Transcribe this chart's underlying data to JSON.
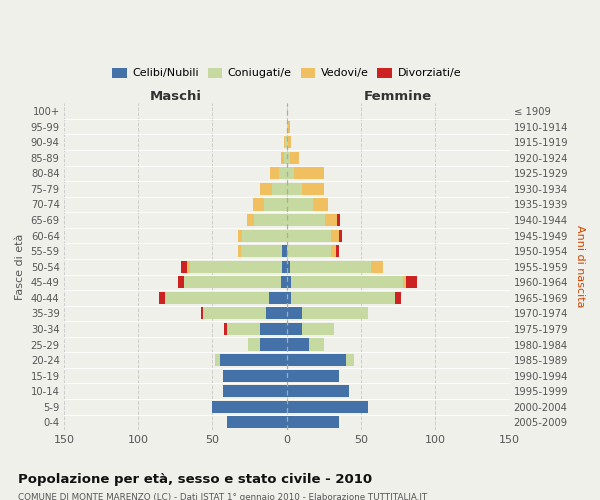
{
  "age_groups": [
    "0-4",
    "5-9",
    "10-14",
    "15-19",
    "20-24",
    "25-29",
    "30-34",
    "35-39",
    "40-44",
    "45-49",
    "50-54",
    "55-59",
    "60-64",
    "65-69",
    "70-74",
    "75-79",
    "80-84",
    "85-89",
    "90-94",
    "95-99",
    "100+"
  ],
  "birth_years": [
    "2005-2009",
    "2000-2004",
    "1995-1999",
    "1990-1994",
    "1985-1989",
    "1980-1984",
    "1975-1979",
    "1970-1974",
    "1965-1969",
    "1960-1964",
    "1955-1959",
    "1950-1954",
    "1945-1949",
    "1940-1944",
    "1935-1939",
    "1930-1934",
    "1925-1929",
    "1920-1924",
    "1915-1919",
    "1910-1914",
    "≤ 1909"
  ],
  "male_celibinubili": [
    40,
    50,
    43,
    43,
    45,
    18,
    18,
    14,
    12,
    4,
    3,
    3,
    0,
    0,
    0,
    0,
    0,
    0,
    0,
    0,
    0
  ],
  "male_coniugati": [
    0,
    0,
    0,
    0,
    3,
    8,
    22,
    42,
    70,
    65,
    62,
    28,
    30,
    22,
    15,
    10,
    5,
    2,
    1,
    0,
    0
  ],
  "male_vedovi": [
    0,
    0,
    0,
    0,
    0,
    0,
    0,
    0,
    0,
    0,
    2,
    2,
    3,
    5,
    8,
    8,
    6,
    2,
    1,
    0,
    0
  ],
  "male_divorziati": [
    0,
    0,
    0,
    0,
    0,
    0,
    2,
    2,
    4,
    4,
    4,
    0,
    0,
    0,
    0,
    0,
    0,
    0,
    0,
    0,
    0
  ],
  "female_celibinubili": [
    35,
    55,
    42,
    35,
    40,
    15,
    10,
    10,
    3,
    3,
    2,
    0,
    0,
    0,
    0,
    0,
    0,
    0,
    0,
    0,
    0
  ],
  "female_coniugati": [
    0,
    0,
    0,
    0,
    5,
    10,
    22,
    45,
    70,
    75,
    55,
    30,
    30,
    26,
    18,
    10,
    5,
    2,
    1,
    1,
    0
  ],
  "female_vedovi": [
    0,
    0,
    0,
    0,
    0,
    0,
    0,
    0,
    0,
    2,
    8,
    3,
    5,
    8,
    10,
    15,
    20,
    6,
    2,
    1,
    0
  ],
  "female_divorziati": [
    0,
    0,
    0,
    0,
    0,
    0,
    0,
    0,
    4,
    8,
    0,
    2,
    2,
    2,
    0,
    0,
    0,
    0,
    0,
    0,
    0
  ],
  "color_celibinubili": "#4472a8",
  "color_coniugati": "#c5d9a0",
  "color_vedovi": "#f0c060",
  "color_divorziati": "#cc2222",
  "title": "Popolazione per età, sesso e stato civile - 2010",
  "subtitle": "COMUNE DI MONTE MARENZO (LC) - Dati ISTAT 1° gennaio 2010 - Elaborazione TUTTITALIA.IT",
  "label_maschi": "Maschi",
  "label_femmine": "Femmine",
  "ylabel_left": "Fasce di età",
  "ylabel_right": "Anni di nascita",
  "xlim": 150,
  "background_color": "#f0f0eb",
  "grid_color": "#cccccc"
}
